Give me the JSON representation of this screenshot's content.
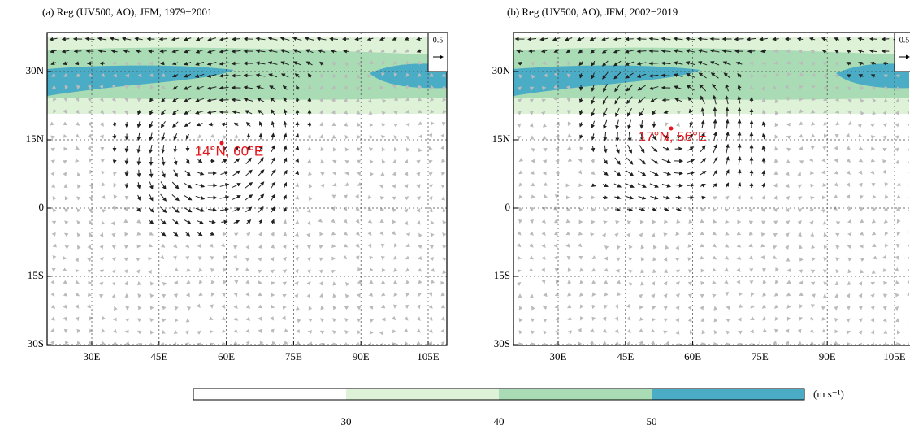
{
  "panels": [
    {
      "title": "(a) Reg (UV500, AO), JFM, 1979−2001",
      "annotation": "14°N, 60°E",
      "reference_vector": "0.5",
      "x_labels": [
        "30E",
        "45E",
        "60E",
        "75E",
        "90E",
        "105E"
      ],
      "y_labels": [
        "30N",
        "15N",
        "0",
        "15S",
        "30S"
      ]
    },
    {
      "title": "(b) Reg (UV500, AO), JFM, 2002−2019",
      "annotation": "17°N, 56°E",
      "reference_vector": "0.5",
      "x_labels": [
        "30E",
        "45E",
        "60E",
        "75E",
        "90E",
        "105E"
      ],
      "y_labels": [
        "30N",
        "15N",
        "0",
        "15S",
        "30S"
      ]
    }
  ],
  "colorbar": {
    "ticks": [
      30,
      40,
      50
    ],
    "colors": [
      "#ffffff",
      "#def2d8",
      "#a9dbb4",
      "#4bacc6"
    ],
    "unit": "(m s⁻¹)"
  }
}
